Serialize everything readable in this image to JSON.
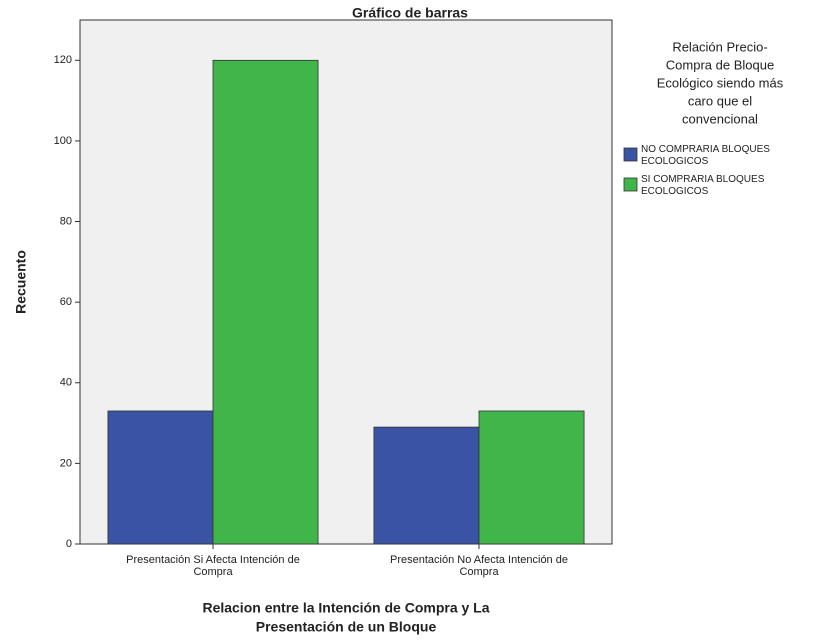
{
  "chart_data": {
    "type": "bar",
    "title": "Gráfico de barras",
    "y_label": "Recuento",
    "x_label": [
      "Relacion entre la Intención de Compra y La",
      "Presentación de un Bloque"
    ],
    "legend_title": [
      "Relación Precio-",
      "Compra de Bloque",
      "Ecológico siendo más",
      "caro que el",
      "convencional"
    ],
    "categories": [
      "Presentación Si Afecta Intención de Compra",
      "Presentación No Afecta Intención de Compra"
    ],
    "series": [
      {
        "name": "NO COMPRARIA BLOQUES ECOLOGICOS",
        "color": "#3a53a4",
        "values": [
          33,
          29
        ]
      },
      {
        "name": "SI COMPRARIA BLOQUES ECOLOGICOS",
        "color": "#3fb54a",
        "values": [
          120,
          33
        ]
      }
    ],
    "ylim": [
      0,
      130
    ],
    "yticks": [
      0,
      20,
      40,
      60,
      80,
      100,
      120
    ],
    "legend": "right"
  }
}
